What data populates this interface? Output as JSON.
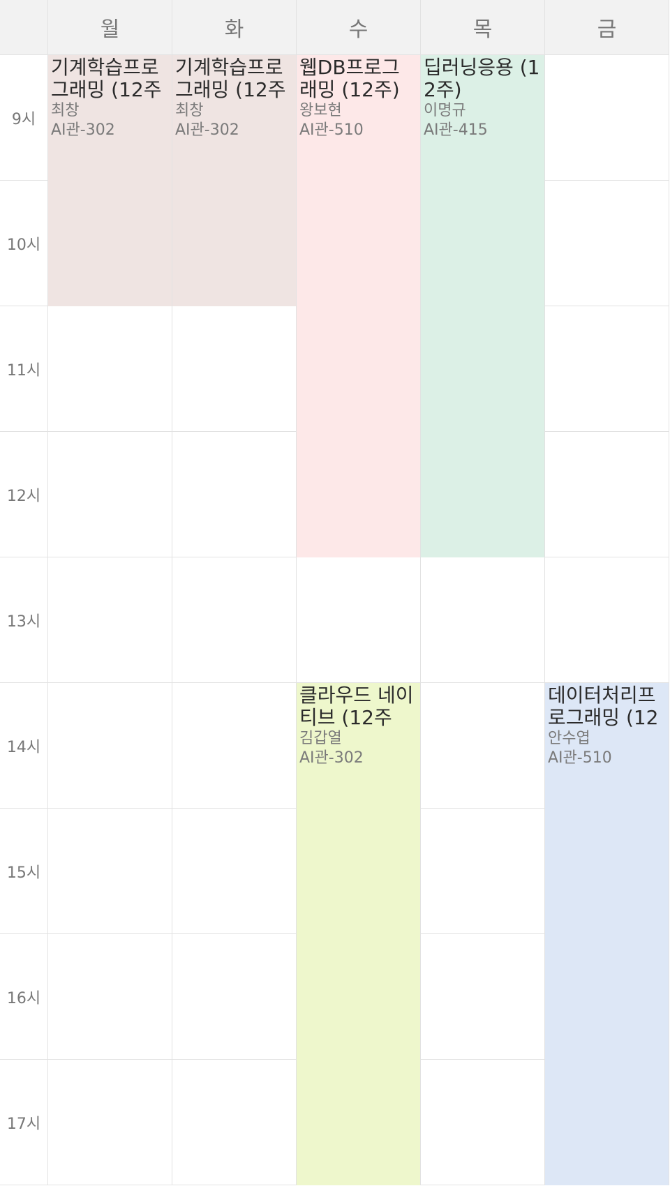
{
  "days": [
    "월",
    "화",
    "수",
    "목",
    "금"
  ],
  "hours": [
    "9시",
    "10시",
    "11시",
    "12시",
    "13시",
    "14시",
    "15시",
    "16시",
    "17시"
  ],
  "events": [
    {
      "day": 0,
      "start": 0,
      "span": 2,
      "title": "기계학습프로그래밍 (12주",
      "instructor": "최창",
      "room": "AI관-302",
      "color": "#efe4e2"
    },
    {
      "day": 1,
      "start": 0,
      "span": 2,
      "title": "기계학습프로그래밍 (12주",
      "instructor": "최창",
      "room": "AI관-302",
      "color": "#efe4e2"
    },
    {
      "day": 2,
      "start": 0,
      "span": 4,
      "title": "웹DB프로그래밍 (12주)",
      "instructor": "왕보현",
      "room": "AI관-510",
      "color": "#fde8e8"
    },
    {
      "day": 3,
      "start": 0,
      "span": 4,
      "title": "딥러닝응용 (12주)",
      "instructor": "이명규",
      "room": "AI관-415",
      "color": "#dcf0e6"
    },
    {
      "day": 2,
      "start": 5,
      "span": 4,
      "title": "클라우드 네이티브 (12주",
      "instructor": "김갑열",
      "room": "AI관-302",
      "color": "#eef7cc"
    },
    {
      "day": 4,
      "start": 5,
      "span": 4,
      "title": "데이터처리프로그래밍 (12",
      "instructor": "안수엽",
      "room": "AI관-510",
      "color": "#dde7f6"
    }
  ]
}
